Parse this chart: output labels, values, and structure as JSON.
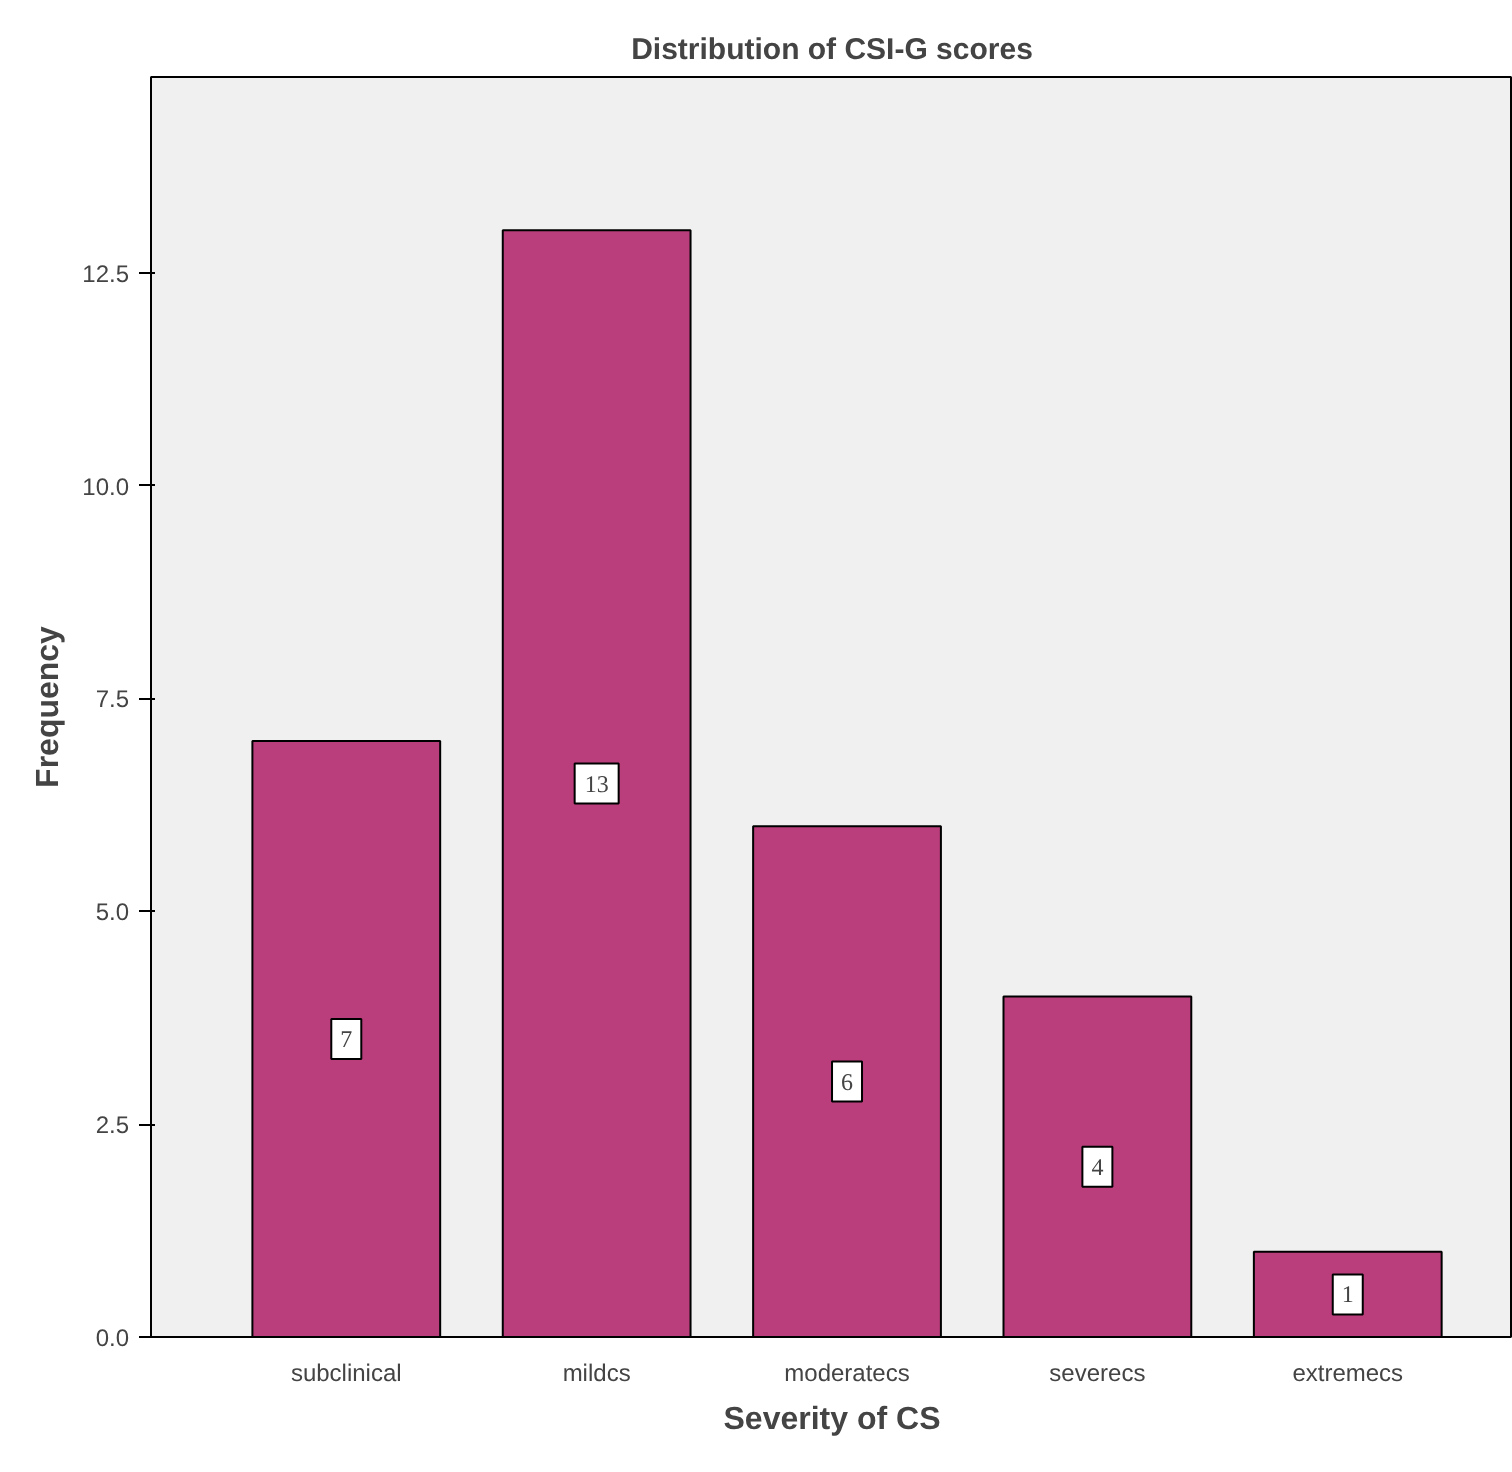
{
  "chart_data": {
    "type": "bar",
    "title": "Distribution of CSI-G scores",
    "xlabel": "Severity of CS",
    "ylabel": "Frequency",
    "categories": [
      "subclinical",
      "mildcs",
      "moderatecs",
      "severecs",
      "extremecs"
    ],
    "values": [
      7,
      13,
      6,
      4,
      1
    ],
    "color": "#b93e7b",
    "ylim": [
      0,
      14.8
    ],
    "yticks": [
      {
        "value": 0,
        "label": "0.0"
      },
      {
        "value": 2.5,
        "label": "2.5"
      },
      {
        "value": 5,
        "label": "5.0"
      },
      {
        "value": 7.5,
        "label": "7.5"
      },
      {
        "value": 10,
        "label": "10.0"
      },
      {
        "value": 12.5,
        "label": "12.5"
      }
    ],
    "data_labels": true,
    "grid": false,
    "legend": false
  }
}
